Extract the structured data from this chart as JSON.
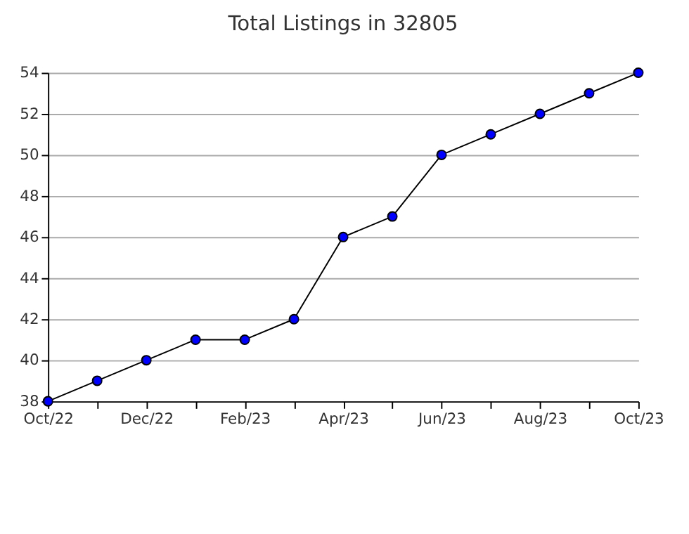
{
  "chart_data": {
    "type": "line",
    "title": "Total Listings in 32805",
    "categories": [
      "Oct/22",
      null,
      "Dec/22",
      null,
      "Feb/23",
      null,
      "Apr/23",
      null,
      "Jun/23",
      null,
      "Aug/23",
      null,
      "Oct/23"
    ],
    "series": [
      {
        "color": "#0000ff",
        "values": [
          38,
          39,
          40,
          41,
          41,
          42,
          46,
          47,
          50,
          51,
          52,
          53,
          54
        ]
      }
    ],
    "ylim": [
      38,
      54
    ],
    "yticks": [
      38,
      40,
      42,
      44,
      46,
      48,
      50,
      52,
      54
    ],
    "grid": "y",
    "marker": "circle",
    "line_style": "solid"
  }
}
